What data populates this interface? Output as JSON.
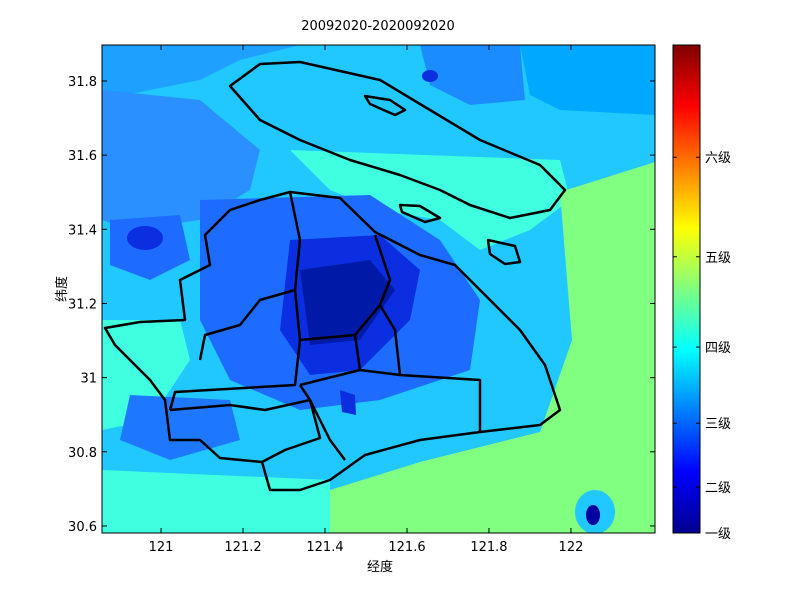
{
  "chart_data": {
    "type": "heatmap-map",
    "title": "20092020-2020092020",
    "x_label": "经度",
    "y_label": "纬度",
    "xlim": [
      120.856,
      122.205
    ],
    "ylim": [
      30.581,
      31.897
    ],
    "xticks": [
      121,
      121.2,
      121.4,
      121.6,
      121.8,
      122
    ],
    "yticks": [
      30.6,
      30.8,
      31,
      31.2,
      31.4,
      31.6,
      31.8
    ],
    "colormap": "jet",
    "clim": [
      0,
      1
    ],
    "cticks": [
      {
        "value": 0,
        "label": "一级"
      },
      {
        "value": 0.094,
        "label": "二级"
      },
      {
        "value": 0.225,
        "label": "三级"
      },
      {
        "value": 0.381,
        "label": "四级"
      },
      {
        "value": 0.566,
        "label": "五级"
      },
      {
        "value": 0.77,
        "label": "六级"
      }
    ]
  }
}
